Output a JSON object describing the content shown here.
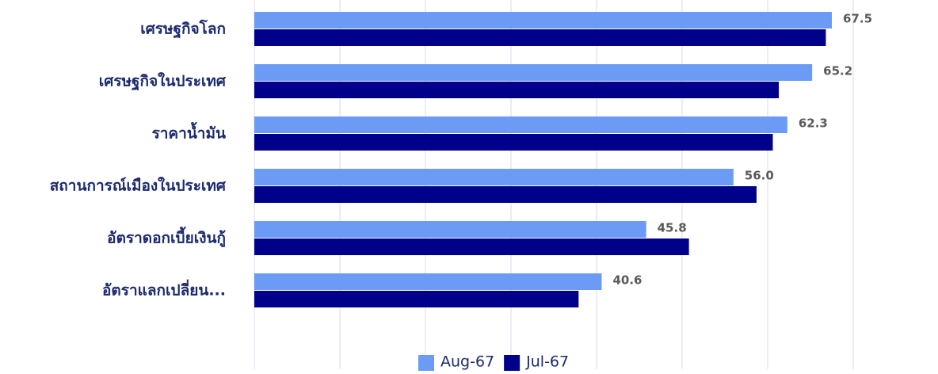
{
  "chart_data": {
    "type": "bar",
    "orientation": "horizontal",
    "categories": [
      "เศรษฐกิจโลก",
      "เศรษฐกิจในประเทศ",
      "ราคาน้ำมัน",
      "สถานการณ์เมืองในประเทศ",
      "อัตราดอกเบี้ยเงินกู้",
      "อัตราแลกเปลี่ยน..."
    ],
    "series": [
      {
        "name": "Aug-67",
        "color": "#6b9bf5",
        "values": [
          67.5,
          65.2,
          62.3,
          56.0,
          45.8,
          40.6
        ],
        "value_labels": [
          "67.5",
          "65.2",
          "62.3",
          "56.0",
          "45.8",
          "40.6"
        ]
      },
      {
        "name": "Jul-67",
        "color": "#00008b",
        "values": [
          66.8,
          61.3,
          60.6,
          58.7,
          50.8,
          37.9
        ]
      }
    ],
    "xlim": [
      0,
      80
    ],
    "xticks": [
      0,
      10,
      20,
      30,
      40,
      50,
      60,
      70,
      80
    ],
    "grid": true,
    "legend": "bottom"
  }
}
